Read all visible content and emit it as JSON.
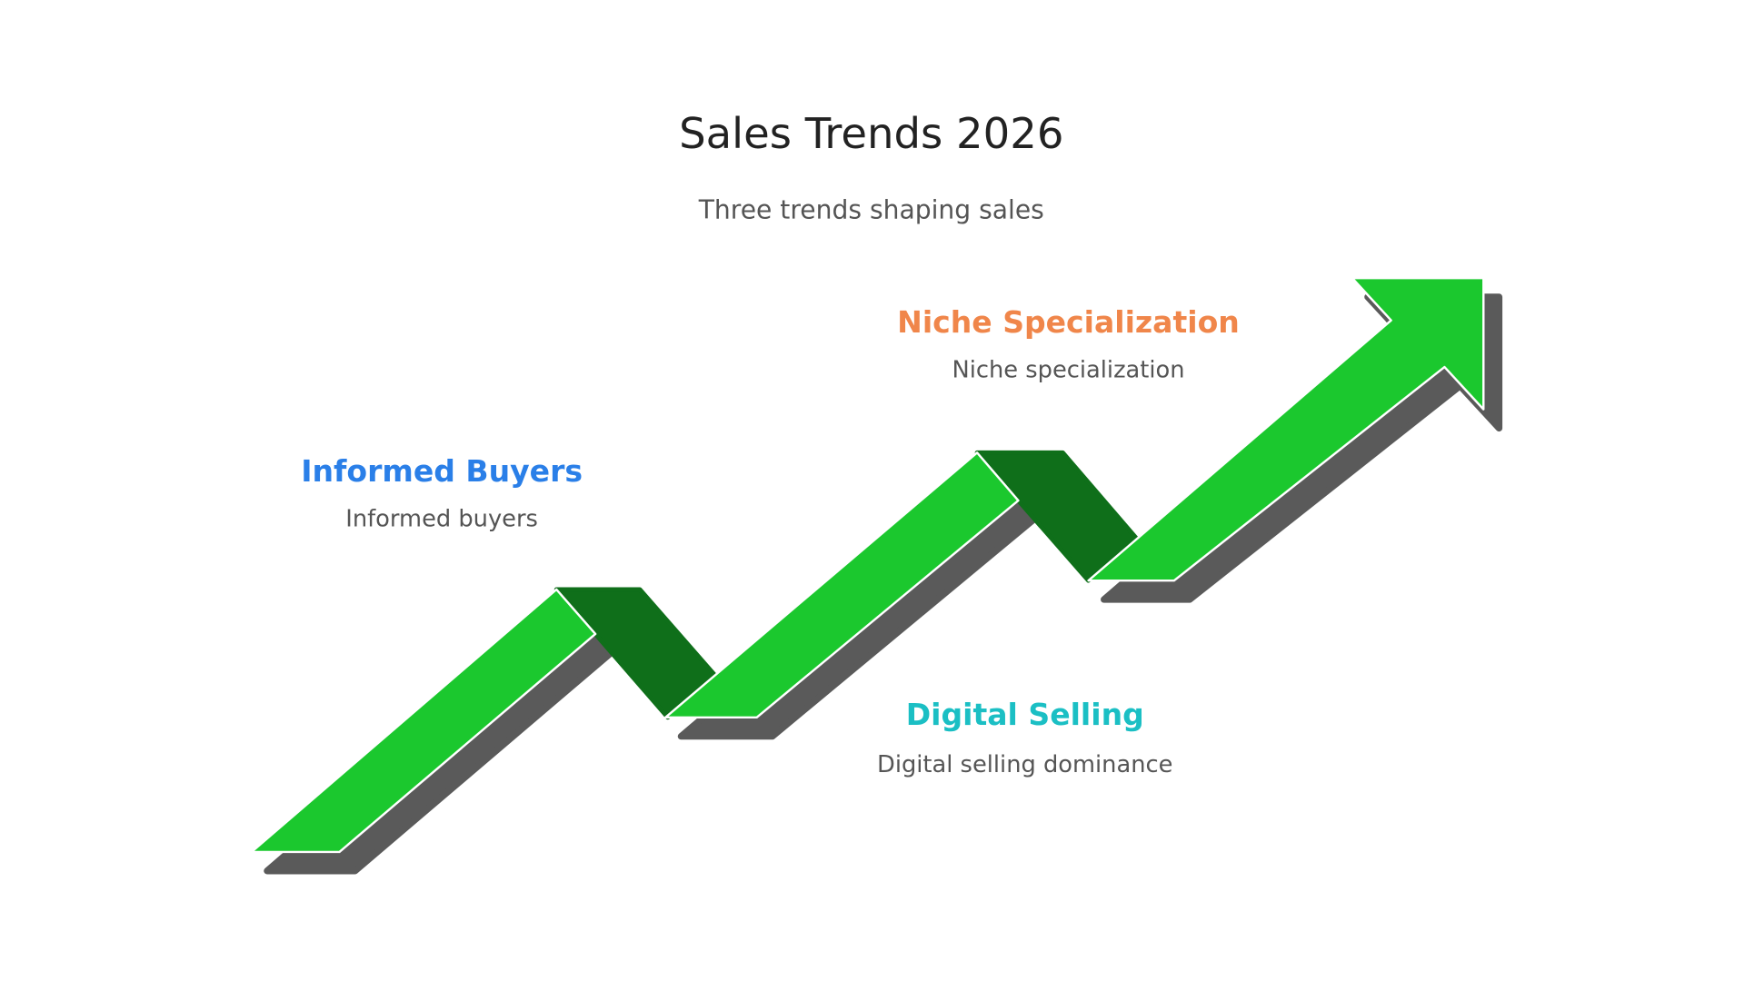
{
  "title": "Sales Trends 2026",
  "subtitle": "Three trends shaping sales",
  "trends": [
    {
      "heading": "Informed Buyers",
      "description": "Informed buyers"
    },
    {
      "heading": "Digital Selling",
      "description": "Digital selling dominance"
    },
    {
      "heading": "Niche Specialization",
      "description": "Niche specialization"
    }
  ]
}
